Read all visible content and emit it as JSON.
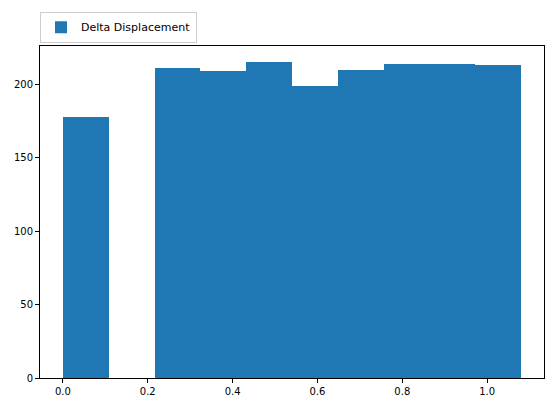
{
  "chart_data": {
    "type": "histogram",
    "series": [
      {
        "name": "Delta Displacement",
        "color": "#1f77b4",
        "bins": [
          0,
          0.108,
          0.216,
          0.324,
          0.432,
          0.54,
          0.648,
          0.756,
          0.864,
          0.972,
          1.08
        ],
        "values": [
          178,
          0,
          211,
          209,
          215,
          199,
          210,
          214,
          214,
          213
        ]
      }
    ],
    "xlim": [
      -0.054,
      1.134
    ],
    "ylim": [
      0,
      226
    ],
    "xticks": [
      {
        "value": 0,
        "label": "0.0"
      },
      0.2,
      0.4,
      0.6,
      0.8,
      {
        "value": 1,
        "label": "1.0"
      }
    ],
    "yticks": [
      0,
      50,
      100,
      150,
      200
    ],
    "grid": false,
    "legend": "upper left"
  }
}
